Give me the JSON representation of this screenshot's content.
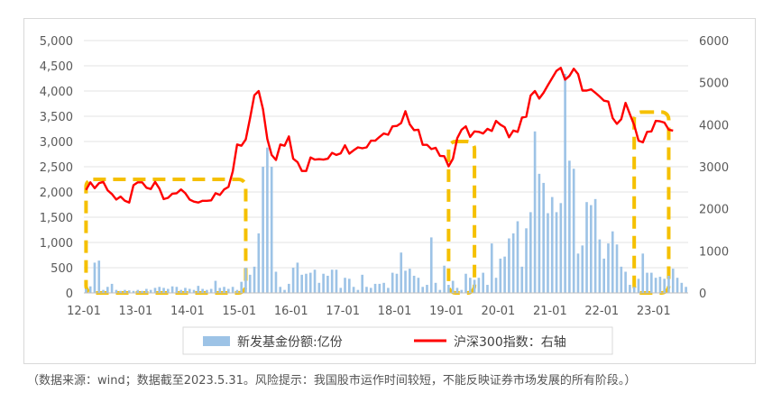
{
  "chart_data": {
    "type": "bar+line",
    "x_tick_labels": [
      "12-01",
      "13-01",
      "14-01",
      "15-01",
      "16-01",
      "17-01",
      "18-01",
      "19-01",
      "20-01",
      "21-01",
      "22-01",
      "23-01"
    ],
    "left_axis": {
      "ticks": [
        "0",
        "500",
        "1,000",
        "1,500",
        "2,000",
        "2,500",
        "3,000",
        "3,500",
        "4,000",
        "4,500",
        "5,000"
      ],
      "min": 0,
      "max": 5000
    },
    "right_axis": {
      "ticks": [
        "0",
        "1000",
        "2000",
        "3000",
        "4000",
        "5000",
        "6000"
      ],
      "min": 0,
      "max": 6000
    },
    "series": [
      {
        "name": "新发基金份额:亿份",
        "type": "bar",
        "axis": "left",
        "color": "#9dc3e6",
        "values": [
          80,
          130,
          600,
          640,
          60,
          120,
          180,
          60,
          40,
          60,
          50,
          40,
          60,
          40,
          80,
          60,
          100,
          120,
          100,
          80,
          130,
          120,
          60,
          100,
          80,
          60,
          140,
          80,
          60,
          80,
          240,
          100,
          120,
          80,
          120,
          60,
          220,
          500,
          360,
          520,
          1180,
          2500,
          2880,
          2500,
          420,
          120,
          60,
          180,
          500,
          600,
          360,
          380,
          400,
          460,
          200,
          380,
          340,
          460,
          460,
          100,
          300,
          280,
          120,
          60,
          360,
          120,
          100,
          180,
          180,
          200,
          100,
          400,
          380,
          800,
          440,
          480,
          340,
          300,
          120,
          160,
          1100,
          200,
          60,
          540,
          160,
          240,
          100,
          60,
          380,
          300,
          260,
          300,
          400,
          160,
          980,
          300,
          680,
          720,
          1080,
          1180,
          1420,
          520,
          1280,
          1600,
          3200,
          2360,
          2180,
          1580,
          1900,
          1600,
          1780,
          4340,
          2620,
          2460,
          780,
          940,
          1800,
          1740,
          1860,
          1060,
          680,
          980,
          1220,
          960,
          520,
          420,
          160,
          120,
          280,
          780,
          400,
          400,
          300,
          320,
          280,
          340,
          480,
          300,
          200,
          120
        ]
      },
      {
        "name": "沪深300指数：右轴",
        "type": "line",
        "axis": "right",
        "color": "#ff0000",
        "values": [
          2450,
          2630,
          2490,
          2610,
          2640,
          2440,
          2350,
          2220,
          2290,
          2190,
          2150,
          2560,
          2630,
          2630,
          2500,
          2470,
          2640,
          2480,
          2230,
          2260,
          2360,
          2370,
          2460,
          2370,
          2220,
          2170,
          2150,
          2190,
          2190,
          2200,
          2370,
          2330,
          2460,
          2520,
          2890,
          3530,
          3500,
          3650,
          4160,
          4700,
          4800,
          4370,
          3660,
          3280,
          3160,
          3530,
          3500,
          3720,
          3190,
          3110,
          2900,
          2900,
          3220,
          3170,
          3180,
          3170,
          3190,
          3330,
          3280,
          3320,
          3510,
          3310,
          3390,
          3460,
          3440,
          3460,
          3620,
          3620,
          3710,
          3790,
          3760,
          3960,
          3970,
          4040,
          4320,
          4010,
          3870,
          3880,
          3520,
          3520,
          3420,
          3450,
          3260,
          3250,
          3010,
          3190,
          3680,
          3880,
          3960,
          3710,
          3840,
          3830,
          3790,
          3900,
          3850,
          4090,
          4000,
          3940,
          3700,
          3860,
          3830,
          4170,
          4190,
          4690,
          4800,
          4620,
          4760,
          4940,
          5110,
          5280,
          5350,
          5070,
          5160,
          5330,
          5200,
          4810,
          4810,
          4840,
          4760,
          4670,
          4570,
          4550,
          4160,
          4020,
          4130,
          4520,
          4250,
          3990,
          3620,
          3580,
          3830,
          3840,
          4090,
          4080,
          4050,
          3880,
          3860
        ]
      }
    ],
    "legend": [
      "新发基金份额:亿份",
      "沪深300指数：右轴"
    ],
    "legend_position": "bottom",
    "grid": true,
    "highlight_boxes_color": "#f5c000"
  },
  "caption": "（数据来源：wind；数据截至2023.5.31。风险提示：我国股市运作时间较短，不能反映证券市场发展的所有阶段。）"
}
